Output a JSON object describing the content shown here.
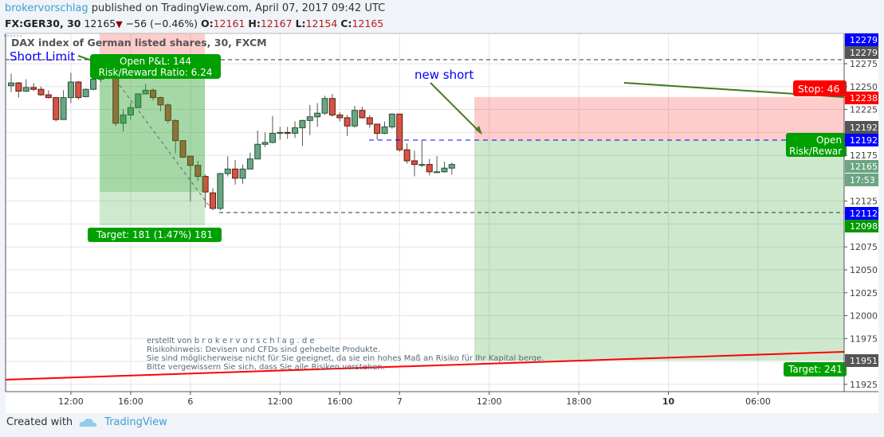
{
  "header": {
    "author": "brokervorschlag",
    "published": "published on TradingView.com, April 07, 2017 09:42 UTC",
    "symbol": "FX:GER30, 30",
    "last": "12165",
    "change": "−56 (−0.46%)",
    "o_label": "O:",
    "o": "12161",
    "h_label": "H:",
    "h": "12167",
    "l_label": "L:",
    "l": "12154",
    "c_label": "C:",
    "c": "12165",
    "down_icon": "triangle-down-icon"
  },
  "colors": {
    "up": "#6ba583",
    "down": "#d75442",
    "accent": "#3a9fd8",
    "stop_zone": "#ff0000",
    "target_zone": "#2ca02c",
    "line_blue": "#0000ff"
  },
  "chart_data": {
    "type": "candlestick",
    "title": "DAX index of German listed shares, 30, FXCM",
    "ylim": [
      11910,
      12295
    ],
    "grid": true,
    "y_ticks": [
      "12275",
      "12250",
      "12225",
      "12175",
      "12125",
      "12075",
      "12050",
      "12025",
      "12000",
      "11975",
      "11925"
    ],
    "x_ticks": [
      "12:00",
      "16:00",
      "6",
      "12:00",
      "16:00",
      "7",
      "12:00",
      "18:00",
      "10",
      "06:00"
    ],
    "candles": [
      [
        12251,
        12264,
        12244,
        12254
      ],
      [
        12254,
        12255,
        12238,
        12245
      ],
      [
        12245,
        12258,
        12244,
        12249
      ],
      [
        12249,
        12254,
        12245,
        12247
      ],
      [
        12247,
        12250,
        12240,
        12241
      ],
      [
        12241,
        12246,
        12237,
        12238
      ],
      [
        12238,
        12238,
        12212,
        12214
      ],
      [
        12214,
        12246,
        12214,
        12238
      ],
      [
        12238,
        12265,
        12232,
        12255
      ],
      [
        12255,
        12256,
        12236,
        12238
      ],
      [
        12239,
        12248,
        12238,
        12247
      ],
      [
        12247,
        12262,
        12246,
        12258
      ],
      [
        12258,
        12268,
        12255,
        12264
      ],
      [
        12264,
        12279,
        12258,
        12262
      ],
      [
        12262,
        12270,
        12207,
        12210
      ],
      [
        12210,
        12225,
        12201,
        12219
      ],
      [
        12219,
        12232,
        12214,
        12227
      ],
      [
        12227,
        12243,
        12227,
        12242
      ],
      [
        12242,
        12253,
        12242,
        12246
      ],
      [
        12246,
        12248,
        12235,
        12238
      ],
      [
        12238,
        12239,
        12223,
        12230
      ],
      [
        12230,
        12232,
        12210,
        12213
      ],
      [
        12213,
        12214,
        12177,
        12191
      ],
      [
        12191,
        12191,
        12172,
        12173
      ],
      [
        12174,
        12174,
        12125,
        12164
      ],
      [
        12164,
        12169,
        12147,
        12152
      ],
      [
        12152,
        12154,
        12118,
        12135
      ],
      [
        12134,
        12139,
        12115,
        12117
      ],
      [
        12117,
        12156,
        12115,
        12155
      ],
      [
        12155,
        12174,
        12152,
        12160
      ],
      [
        12160,
        12170,
        12143,
        12150
      ],
      [
        12150,
        12165,
        12144,
        12160
      ],
      [
        12160,
        12178,
        12160,
        12171
      ],
      [
        12171,
        12202,
        12171,
        12187
      ],
      [
        12187,
        12200,
        12184,
        12189
      ],
      [
        12189,
        12218,
        12188,
        12199
      ],
      [
        12199,
        12206,
        12192,
        12200
      ],
      [
        12200,
        12206,
        12193,
        12199
      ],
      [
        12199,
        12212,
        12194,
        12205
      ],
      [
        12205,
        12214,
        12185,
        12213
      ],
      [
        12213,
        12230,
        12197,
        12217
      ],
      [
        12217,
        12232,
        12206,
        12221
      ],
      [
        12221,
        12240,
        12219,
        12237
      ],
      [
        12237,
        12242,
        12217,
        12219
      ],
      [
        12219,
        12222,
        12212,
        12216
      ],
      [
        12216,
        12219,
        12196,
        12207
      ],
      [
        12207,
        12229,
        12205,
        12224
      ],
      [
        12224,
        12228,
        12215,
        12216
      ],
      [
        12216,
        12219,
        12205,
        12209
      ],
      [
        12209,
        12209,
        12192,
        12199
      ],
      [
        12199,
        12212,
        12198,
        12206
      ],
      [
        12206,
        12221,
        12204,
        12220
      ],
      [
        12220,
        12220,
        12179,
        12181
      ],
      [
        12181,
        12188,
        12166,
        12169
      ],
      [
        12169,
        12180,
        12152,
        12165
      ],
      [
        12164,
        12191,
        12162,
        12165
      ],
      [
        12165,
        12171,
        12153,
        12157
      ],
      [
        12157,
        12174,
        12156,
        12157
      ],
      [
        12157,
        12168,
        12156,
        12161
      ],
      [
        12161,
        12167,
        12154,
        12165
      ]
    ]
  },
  "price_tags": [
    {
      "value": "12279",
      "color": "#0000ff",
      "price": 12279.6
    },
    {
      "value": "12279",
      "color": "#555555",
      "price": 12265.5
    },
    {
      "value": "12238",
      "color": "#ff0000",
      "price": 12238
    },
    {
      "value": "12192",
      "color": "#555555",
      "price": 12205
    },
    {
      "value": "12192",
      "color": "#0000ff",
      "price": 12192
    },
    {
      "value": "12165",
      "color": "#6ba583",
      "price": 12165
    },
    {
      "value": "17:53",
      "color": "#6ba583",
      "price": 12150
    },
    {
      "value": "12112",
      "color": "#0000ff",
      "price": 12112
    },
    {
      "value": "12098",
      "color": "#009900",
      "price": 12098
    },
    {
      "value": "11951",
      "color": "#555555",
      "price": 11951
    }
  ],
  "annotations": {
    "short_limit": "Short Limit",
    "open_pl": "Open P&L: 144",
    "rr_ratio": "Risk/Reward Ratio: 6.24",
    "target_left": "Target: 181 (1.47%) 181",
    "new_short": "new short",
    "stop_right": "Stop: 46",
    "open_right": "Open",
    "rr_right": "Risk/Rewar",
    "target_right": "Target: 241"
  },
  "watermark": [
    "erstellt von b r o k e r v o r s c h l a g . d e",
    "Risikohinweis: Devisen und CFDs sind gehebelte Produkte.",
    "Sie sind möglicherweise nicht für Sie geeignet, da sie ein hohes Maß an Risiko für Ihr Kapital berge.",
    "Bitte vergewissern Sie sich, dass Sie alle Risiken verstehen."
  ],
  "footer": {
    "created_with": "Created with",
    "brand": "TradingView",
    "logo_icon": "tradingview-cloud-icon"
  }
}
